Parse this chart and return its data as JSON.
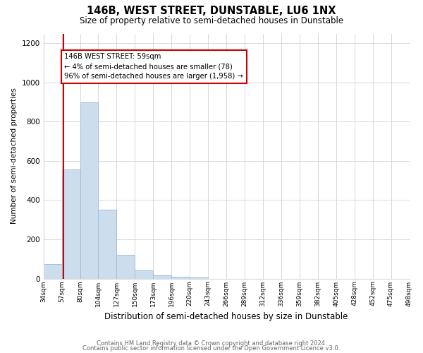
{
  "title": "146B, WEST STREET, DUNSTABLE, LU6 1NX",
  "subtitle": "Size of property relative to semi-detached houses in Dunstable",
  "xlabel": "Distribution of semi-detached houses by size in Dunstable",
  "ylabel": "Number of semi-detached properties",
  "footnote1": "Contains HM Land Registry data © Crown copyright and database right 2024.",
  "footnote2": "Contains public sector information licensed under the Open Government Licence v3.0.",
  "bar_color": "#ccdded",
  "bar_edge_color": "#a0c0d8",
  "annotation_text": "146B WEST STREET: 59sqm\n← 4% of semi-detached houses are smaller (78)\n96% of semi-detached houses are larger (1,958) →",
  "property_line_color": "#cc0000",
  "bins": [
    34,
    57,
    80,
    104,
    127,
    150,
    173,
    196,
    220,
    243,
    266,
    289,
    312,
    336,
    359,
    382,
    405,
    428,
    452,
    475,
    498
  ],
  "bar_heights": [
    75,
    555,
    900,
    350,
    120,
    40,
    15,
    10,
    5,
    0,
    0,
    0,
    0,
    0,
    0,
    0,
    0,
    0,
    0,
    0
  ],
  "ylim": [
    0,
    1250
  ],
  "yticks": [
    0,
    200,
    400,
    600,
    800,
    1000,
    1200
  ],
  "grid_color": "#d8d8d8",
  "background_color": "#ffffff",
  "prop_sqm": 59,
  "bin_width": 23
}
